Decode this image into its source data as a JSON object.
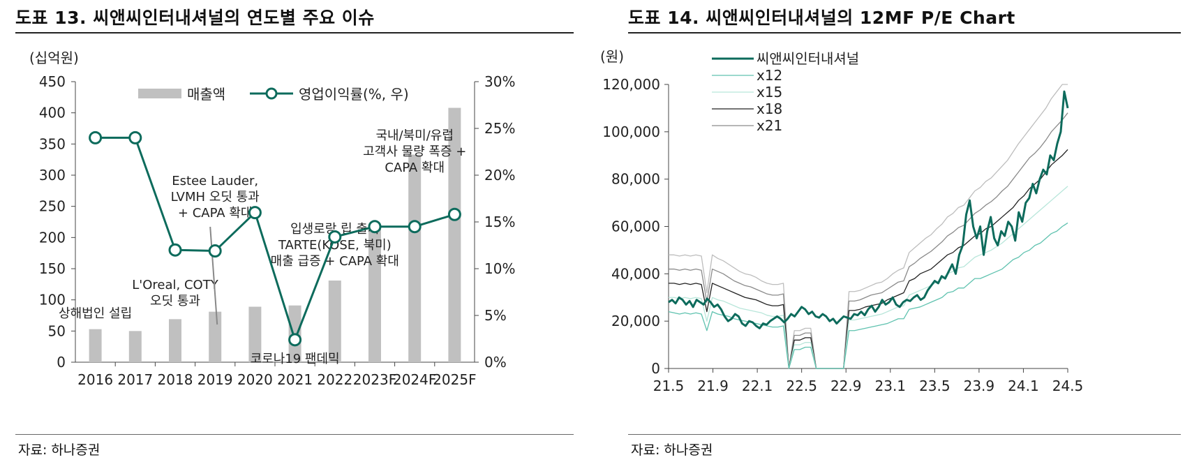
{
  "left": {
    "title": "도표 13. 씨앤씨인터내셔널의 연도별 주요 이슈",
    "source": "자료: 하나증권",
    "unit_label": "(십억원)",
    "chart_data": {
      "type": "bar+line",
      "categories": [
        "2016",
        "2017",
        "2018",
        "2019",
        "2020",
        "2021",
        "2022",
        "2023F",
        "2024F",
        "2025F"
      ],
      "series": [
        {
          "name": "매출액",
          "type": "bar",
          "axis": "left",
          "color": "#c0c0c0",
          "values": [
            53,
            50,
            69,
            81,
            89,
            91,
            131,
            218,
            333,
            408
          ]
        },
        {
          "name": "영업이익률(%, 우)",
          "type": "line",
          "axis": "right",
          "color": "#0d6b5c",
          "values": [
            24.0,
            24.0,
            12.0,
            11.9,
            16.0,
            2.4,
            13.4,
            14.5,
            14.5,
            15.8
          ]
        }
      ],
      "y_left": {
        "min": 0,
        "max": 450,
        "ticks": [
          "0",
          "50",
          "100",
          "150",
          "200",
          "250",
          "300",
          "350",
          "400",
          "450"
        ]
      },
      "y_right": {
        "min": 0,
        "max": 30,
        "ticks": [
          "0%",
          "5%",
          "10%",
          "15%",
          "20%",
          "25%",
          "30%"
        ]
      },
      "legend": [
        "매출액",
        "영업이익률(%, 우)"
      ],
      "legend_position": "top-center",
      "annotations": [
        {
          "category": "2016",
          "lines": [
            "상해법인 설립"
          ]
        },
        {
          "category": "2018",
          "lines": [
            "L'Oreal, COTY",
            "오딧 통과"
          ]
        },
        {
          "category": "2019",
          "lines": [
            "Estee Lauder,",
            "LVMH 오딧 통과",
            "+ CAPA 확대"
          ]
        },
        {
          "category": "2021",
          "lines": [
            "코로나19 팬데믹"
          ]
        },
        {
          "category": "2022",
          "lines": [
            "입생로랑 립 출시",
            "TARTE(KOSE, 북미)",
            "매출 급증 + CAPA 확대"
          ]
        },
        {
          "category": "2024F",
          "lines": [
            "국내/북미/유럽",
            "고객사 물량 폭증 +",
            "CAPA 확대"
          ]
        }
      ]
    }
  },
  "right": {
    "title": "도표 14. 씨앤씨인터내셔널의 12MF P/E Chart",
    "source": "자료: 하나증권",
    "unit_label": "(원)",
    "chart_data": {
      "type": "line",
      "x_ticks": [
        "21.5",
        "21.9",
        "22.1",
        "22.5",
        "22.9",
        "23.1",
        "23.5",
        "23.9",
        "24.1",
        "24.5"
      ],
      "y": {
        "min": 0,
        "max": 120000,
        "ticks": [
          "0",
          "20,000",
          "40,000",
          "60,000",
          "80,000",
          "100,000",
          "120,000"
        ]
      },
      "legend_position": "top-left",
      "series": [
        {
          "name": "씨앤씨인터내셔널",
          "color": "#0d6b5c",
          "width": 3,
          "values": [
            28000,
            29000,
            27500,
            30000,
            29000,
            27000,
            28500,
            26000,
            29000,
            28000,
            27000,
            29500,
            28000,
            26000,
            27000,
            25000,
            22000,
            20000,
            21000,
            23000,
            22000,
            19000,
            18000,
            20000,
            19500,
            18000,
            17000,
            19000,
            18500,
            20000,
            21000,
            22000,
            21000,
            19500,
            21000,
            23000,
            22000,
            24000,
            26000,
            25000,
            23000,
            24000,
            22000,
            21500,
            23000,
            22000,
            20000,
            21000,
            19000,
            20500,
            22000,
            21500,
            21000,
            23000,
            22500,
            24000,
            22500,
            25000,
            26500,
            24000,
            26000,
            29000,
            27000,
            28000,
            30000,
            27000,
            26000,
            28000,
            29000,
            28500,
            30000,
            31000,
            29000,
            30000,
            33000,
            35000,
            37000,
            36000,
            39000,
            38000,
            41000,
            44000,
            40000,
            48000,
            52000,
            65000,
            71000,
            60000,
            55000,
            60000,
            48000,
            58000,
            64000,
            55000,
            52000,
            58000,
            56000,
            62000,
            60000,
            54000,
            66000,
            62000,
            70000,
            72000,
            78000,
            74000,
            80000,
            84000,
            82000,
            90000,
            88000,
            95000,
            100000,
            117000,
            110000
          ]
        },
        {
          "name": "x12",
          "color": "#5fc2af",
          "width": 1.3,
          "values": [
            24000,
            23500,
            23000,
            23500,
            23000,
            23500,
            23000,
            16000,
            24000,
            23000,
            22500,
            22000,
            21000,
            20500,
            20000,
            19500,
            19000,
            18500,
            18000,
            17500,
            17500,
            18000,
            0,
            8000,
            8000,
            9000,
            9000,
            0,
            0,
            0,
            0,
            0,
            0,
            16000,
            16000,
            16500,
            17000,
            17500,
            18000,
            18500,
            19000,
            20000,
            21000,
            21000,
            25000,
            25500,
            26000,
            27000,
            28000,
            29000,
            30000,
            32000,
            32500,
            34000,
            34000,
            36000,
            38000,
            38000,
            39000,
            40000,
            41000,
            42000,
            44000,
            46000,
            47000,
            49000,
            50000,
            52000,
            53000,
            55000,
            57000,
            58000,
            60000,
            61500
          ]
        },
        {
          "name": "x15",
          "color": "#b8e6da",
          "width": 1.3,
          "values": [
            30000,
            30000,
            29500,
            30000,
            29500,
            30000,
            29500,
            20000,
            30000,
            29000,
            28500,
            27500,
            26500,
            25500,
            25000,
            24500,
            24000,
            23500,
            22500,
            22000,
            22000,
            22500,
            0,
            10000,
            10000,
            11000,
            11000,
            0,
            0,
            0,
            0,
            0,
            0,
            20500,
            20500,
            21000,
            21500,
            22000,
            22500,
            23000,
            24000,
            25000,
            26000,
            26500,
            31000,
            32000,
            33000,
            34000,
            35000,
            36500,
            38000,
            40000,
            41000,
            42500,
            43000,
            45000,
            47000,
            48000,
            49000,
            50000,
            51500,
            53000,
            55000,
            57000,
            59000,
            61000,
            63000,
            65000,
            67000,
            69000,
            71000,
            73000,
            75000,
            77000
          ]
        },
        {
          "name": "x18",
          "color": "#222222",
          "width": 1.3,
          "values": [
            36000,
            36000,
            35500,
            36000,
            35500,
            36000,
            35500,
            24000,
            36000,
            35000,
            34000,
            33000,
            32000,
            31000,
            30000,
            29500,
            29000,
            28000,
            27000,
            26500,
            26500,
            27000,
            0,
            12000,
            12000,
            13000,
            13000,
            0,
            0,
            0,
            0,
            0,
            0,
            24500,
            24500,
            25000,
            26000,
            26500,
            27000,
            27500,
            29000,
            30000,
            31000,
            32000,
            37000,
            38000,
            40000,
            41000,
            42000,
            44000,
            46000,
            48000,
            49000,
            51000,
            52000,
            54000,
            56000,
            57000,
            59000,
            60000,
            62000,
            64000,
            66000,
            68000,
            71000,
            73000,
            76000,
            78000,
            80000,
            83000,
            86000,
            88000,
            90000,
            92500
          ]
        },
        {
          "name": "x21",
          "color": "#8a8a8a",
          "width": 1.3,
          "values": [
            42000,
            42000,
            41500,
            42000,
            41500,
            42000,
            41500,
            28000,
            42000,
            41000,
            40000,
            38500,
            37000,
            36000,
            35000,
            34500,
            33500,
            32500,
            31500,
            31000,
            31000,
            31500,
            0,
            14000,
            14000,
            15000,
            15000,
            0,
            0,
            0,
            0,
            0,
            0,
            28500,
            28500,
            29000,
            30000,
            31000,
            31500,
            32000,
            33500,
            35000,
            36500,
            37000,
            43000,
            44500,
            46500,
            48000,
            49500,
            51500,
            53500,
            56000,
            57500,
            59500,
            60500,
            63000,
            65500,
            67000,
            69000,
            70500,
            72500,
            75000,
            77000,
            80000,
            83000,
            86000,
            89000,
            91000,
            93500,
            96500,
            100000,
            102500,
            105000,
            108000
          ]
        },
        {
          "name": "",
          "color": "#bdbdbd",
          "width": 1.3,
          "legend": false,
          "values": [
            48000,
            48000,
            47500,
            48000,
            47500,
            48000,
            47500,
            32000,
            48000,
            46500,
            45500,
            44000,
            42500,
            41000,
            40000,
            39500,
            38500,
            37000,
            36000,
            35500,
            35500,
            36000,
            0,
            16000,
            16000,
            17000,
            17000,
            0,
            0,
            0,
            0,
            0,
            0,
            32500,
            32500,
            33000,
            34000,
            35000,
            36000,
            36500,
            38000,
            40000,
            41500,
            42500,
            49000,
            51000,
            53000,
            55000,
            56500,
            59000,
            61000,
            64000,
            65500,
            68000,
            69000,
            72000,
            75000,
            76500,
            79000,
            80500,
            83000,
            85500,
            88000,
            91500,
            95000,
            98000,
            101000,
            104000,
            107000,
            110000,
            114000,
            117000,
            120000,
            123000
          ]
        }
      ]
    }
  }
}
